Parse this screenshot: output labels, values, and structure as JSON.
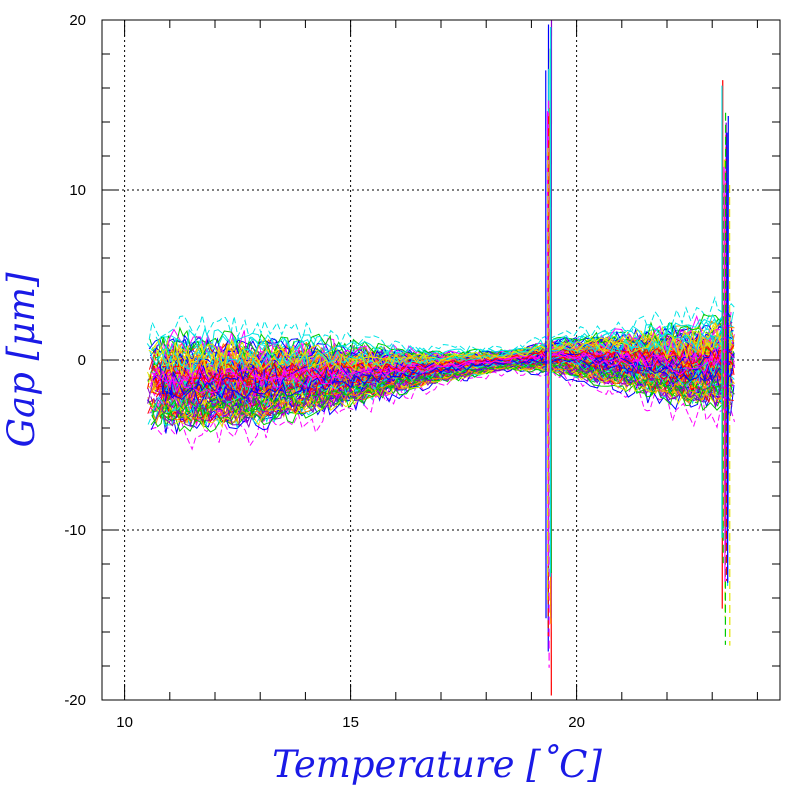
{
  "chart_data": {
    "type": "line",
    "title": "",
    "xlabel": "Temperature [˚C]",
    "ylabel": "Gap [μm]",
    "xlim": [
      9.5,
      24.5
    ],
    "ylim": [
      -20,
      20
    ],
    "x_ticks": [
      10,
      15,
      20
    ],
    "x_tick_labels": [
      "10",
      "15",
      "20"
    ],
    "y_ticks": [
      -20,
      -10,
      0,
      10,
      20
    ],
    "y_tick_labels": [
      "-20",
      "-10",
      "0",
      "10",
      "20"
    ],
    "x_minor_step": 1,
    "y_minor_step": 2,
    "grid": "dotted at major ticks",
    "legend": "none",
    "series_colors": [
      "#ff0000",
      "#0000ff",
      "#00cc00",
      "#00e5e5",
      "#ff00ff",
      "#e5e500",
      "#8800cc",
      "#ff8800"
    ],
    "series_count_approx": 150,
    "x_range_of_data": [
      10.5,
      23.5
    ],
    "envelope": {
      "x": [
        10.5,
        12.5,
        14,
        15.5,
        17,
        18.5,
        19.5,
        21,
        22.5,
        23.5
      ],
      "upper": [
        3.5,
        3.5,
        3,
        2,
        1.2,
        1,
        2,
        3,
        4,
        5
      ],
      "lower": [
        -6,
        -6,
        -5,
        -3.5,
        -2,
        -1,
        -1.5,
        -3,
        -4.5,
        -5
      ]
    },
    "spikes": [
      {
        "x": 19.4,
        "y_min": -20,
        "y_max": 20
      },
      {
        "x": 23.3,
        "y_min": -17,
        "y_max": 17
      }
    ]
  }
}
